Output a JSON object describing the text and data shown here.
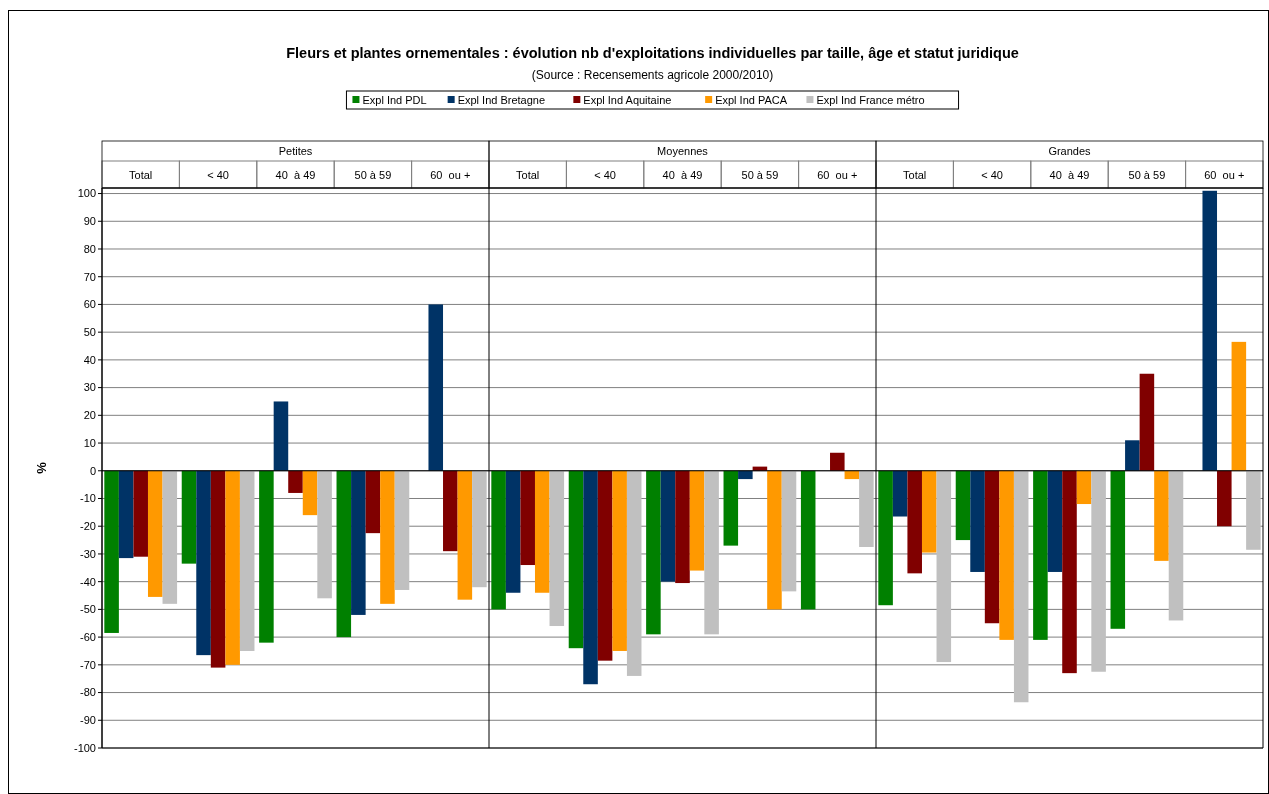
{
  "chart_data": {
    "type": "bar",
    "title": "Fleurs et plantes ornementales : évolution nb d'exploitations individuelles par taille, âge et statut juridique",
    "subtitle": "(Source : Recensements agricole 2000/2010)",
    "ylabel": "%",
    "categories": [
      "Total",
      "< 40",
      "40  à 49",
      "50 à 59",
      "60  ou +",
      "Total",
      "< 40",
      "40  à 49",
      "50 à 59",
      "60  ou +",
      "Total",
      "< 40",
      "40  à 49",
      "50 à 59",
      "60  ou +"
    ],
    "annotations": [
      "Petites",
      "Moyennes",
      "Grandes"
    ],
    "series": [
      {
        "name": "Expl Ind PDL",
        "color": "#008000",
        "values": [
          -58.5,
          -33.5,
          -62,
          -60,
          null,
          -50,
          -64,
          -59,
          -27,
          -50,
          -48.5,
          -25,
          -61,
          -57,
          null
        ]
      },
      {
        "name": "Expl Ind Bretagne",
        "color": "#003366",
        "values": [
          -31.5,
          -66.5,
          25,
          -52,
          60,
          -44,
          -77,
          -40,
          -3,
          null,
          -16.5,
          -36.5,
          -36.5,
          11,
          101
        ]
      },
      {
        "name": "Expl Ind Aquitaine",
        "color": "#800000",
        "values": [
          -31,
          -71,
          -8,
          -22.5,
          -29,
          -34,
          -68.5,
          -40.5,
          1.5,
          6.5,
          -37,
          -55,
          -73,
          35,
          -20
        ]
      },
      {
        "name": "Expl Ind PACA",
        "color": "#ff9900",
        "values": [
          -45.5,
          -70,
          -16,
          -48,
          -46.5,
          -44,
          -65,
          -36,
          -50,
          -3,
          -29.5,
          -61,
          -12,
          -32.5,
          46.5
        ]
      },
      {
        "name": "Expl Ind France métro",
        "color": "#c0c0c0",
        "values": [
          -48,
          -65,
          -46,
          -43,
          -42,
          -56,
          -74,
          -59,
          -43.5,
          -27.5,
          -69,
          -83.5,
          -72.5,
          -54,
          -28.5
        ]
      }
    ],
    "ylim": [
      -100,
      102
    ],
    "yticks": [
      -100,
      -90,
      -80,
      -70,
      -60,
      -50,
      -40,
      -30,
      -20,
      -10,
      0,
      10,
      20,
      30,
      40,
      50,
      60,
      70,
      80,
      90,
      100
    ],
    "grid": "y",
    "legend": "top"
  }
}
